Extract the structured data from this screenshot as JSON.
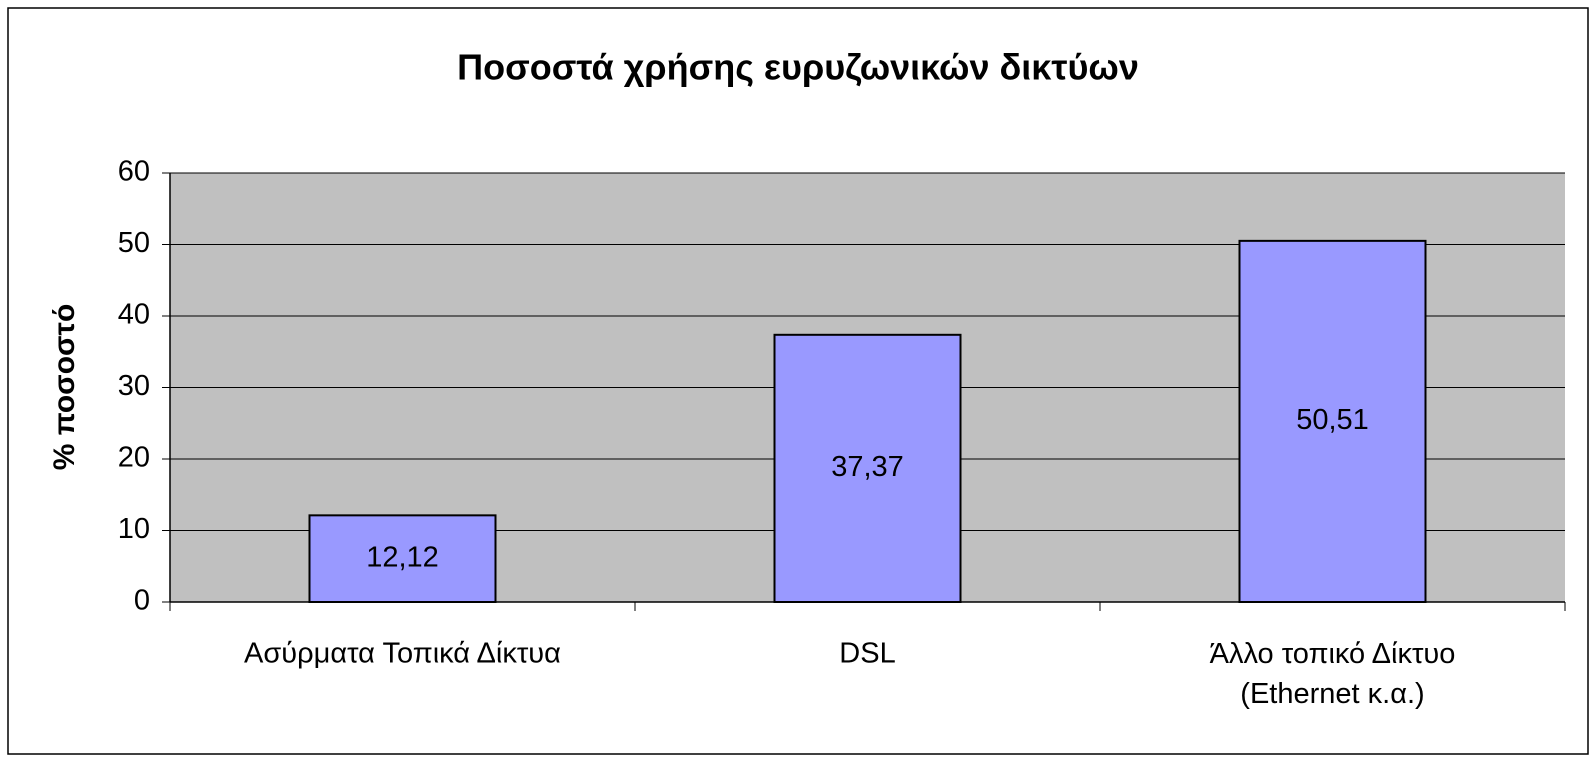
{
  "chart_data": {
    "type": "bar",
    "title": "Ποσοστά χρήσης ευρυζωνικών δικτύων",
    "y_label": "% ποσοστό",
    "categories": [
      "Ασύρματα Τοπικά Δίκτυα",
      "DSL",
      "Άλλο τοπικό Δίκτυο\n(Ethernet κ.α.)"
    ],
    "values": [
      12.12,
      37.37,
      50.51
    ],
    "value_labels": [
      "12,12",
      "37,37",
      "50,51"
    ],
    "color": "#9999ff",
    "ylim": [
      0,
      60
    ],
    "yticks": [
      0,
      10,
      20,
      30,
      40,
      50,
      60
    ],
    "grid": true
  }
}
